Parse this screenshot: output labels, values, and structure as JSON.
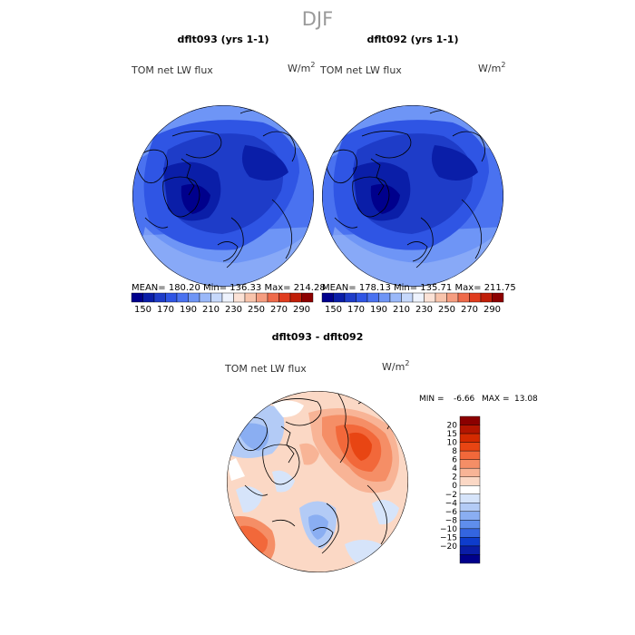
{
  "figure": {
    "season": "DJF"
  },
  "panels": [
    {
      "title": "dflt093 (yrs 1-1)",
      "variable": "TOM net LW flux",
      "units": "W/m",
      "units_sup": "2",
      "stats": "MEAN= 180.20    Min= 136.33    Max= 214.28"
    },
    {
      "title": "dflt092 (yrs 1-1)",
      "variable": "TOM net LW flux",
      "units": "W/m",
      "units_sup": "2",
      "stats": "MEAN= 178.13    Min= 135.71    Max= 211.75"
    }
  ],
  "colorbar_top": {
    "labels": [
      "150",
      "170",
      "190",
      "210",
      "230",
      "250",
      "270",
      "290"
    ],
    "colors": [
      "#00008c",
      "#0a1ea8",
      "#1e3cc8",
      "#2f55e4",
      "#4a72f0",
      "#6e95f6",
      "#9ab8f9",
      "#c6d8fb",
      "#eef3fd",
      "#fbe2d6",
      "#f8c4ac",
      "#f59d80",
      "#ee6a4a",
      "#e03c1e",
      "#c01e08",
      "#8c0000"
    ]
  },
  "difference": {
    "title": "dflt093 - dflt092",
    "variable": "TOM net LW flux",
    "units": "W/m",
    "units_sup": "2",
    "min_label": "MIN =",
    "min_value": "-6.66",
    "max_label": "MAX =",
    "max_value": "13.08",
    "legend_labels": [
      "20",
      "15",
      "10",
      "8",
      "6",
      "4",
      "2",
      "0",
      "−2",
      "−4",
      "−6",
      "−8",
      "−10",
      "−15",
      "−20"
    ],
    "legend_colors": [
      "#8b0000",
      "#b31500",
      "#d42a00",
      "#e84513",
      "#f2683a",
      "#f58e66",
      "#f8b496",
      "#fbd8c5",
      "#ffffff",
      "#d6e4fa",
      "#b3cbf6",
      "#8aaef2",
      "#5f8eec",
      "#3465e0",
      "#0e3ccc",
      "#0a1da6",
      "#00008b"
    ]
  }
}
